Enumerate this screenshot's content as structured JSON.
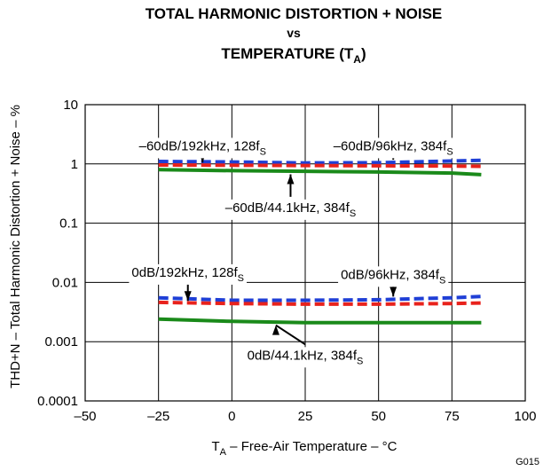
{
  "chart_data": {
    "type": "line",
    "title_lines": [
      "TOTAL HARMONIC DISTORTION + NOISE",
      "vs",
      "TEMPERATURE (T",
      "A",
      ")"
    ],
    "xlabel_parts": [
      "T",
      "A",
      " – Free-Air Temperature – °C"
    ],
    "ylabel": "THD+N – Total Harmonic Distortion + Noise – %",
    "figure_id": "G015",
    "xlim": [
      -50,
      100
    ],
    "ylim": [
      0.0001,
      10
    ],
    "y_scale": "log",
    "grid": true,
    "x_ticks": [
      "–50",
      "–25",
      "0",
      "25",
      "50",
      "75",
      "100"
    ],
    "y_ticks": [
      "0.0001",
      "0.001",
      "0.01",
      "0.1",
      "1",
      "10"
    ],
    "series": [
      {
        "name": "–60dB/96kHz, 384fS",
        "label_main": "–60dB/96kHz, 384f",
        "label_sub": "S",
        "color": "#1f3fd6",
        "style": "dashed",
        "x": [
          -25,
          0,
          25,
          50,
          75,
          85
        ],
        "y": [
          1.1,
          1.08,
          1.04,
          1.05,
          1.12,
          1.15
        ]
      },
      {
        "name": "–60dB/192kHz, 128fS",
        "label_main": "–60dB/192kHz, 128f",
        "label_sub": "S",
        "color": "#e8221c",
        "style": "dashed",
        "x": [
          -25,
          0,
          25,
          50,
          75,
          85
        ],
        "y": [
          0.96,
          0.95,
          0.94,
          0.93,
          0.92,
          0.91
        ]
      },
      {
        "name": "–60dB/44.1kHz, 384fS",
        "label_main": "–60dB/44.1kHz, 384f",
        "label_sub": "S",
        "color": "#1a8a1a",
        "style": "solid",
        "x": [
          -25,
          0,
          25,
          50,
          75,
          85
        ],
        "y": [
          0.8,
          0.77,
          0.75,
          0.73,
          0.7,
          0.66
        ]
      },
      {
        "name": "0dB/96kHz, 384fS",
        "label_main": "0dB/96kHz, 384f",
        "label_sub": "S",
        "color": "#1f3fd6",
        "style": "dashed",
        "x": [
          -25,
          0,
          25,
          50,
          75,
          85
        ],
        "y": [
          0.0055,
          0.005,
          0.005,
          0.0051,
          0.0055,
          0.0058
        ]
      },
      {
        "name": "0dB/192kHz, 128fS",
        "label_main": "0dB/192kHz, 128f",
        "label_sub": "S",
        "color": "#e8221c",
        "style": "dashed",
        "x": [
          -25,
          0,
          25,
          50,
          75,
          85
        ],
        "y": [
          0.0046,
          0.0044,
          0.0043,
          0.0043,
          0.0044,
          0.0045
        ]
      },
      {
        "name": "0dB/44.1kHz, 384fS",
        "label_main": "0dB/44.1kHz, 384f",
        "label_sub": "S",
        "color": "#1a8a1a",
        "style": "solid",
        "x": [
          -25,
          0,
          25,
          50,
          75,
          85
        ],
        "y": [
          0.0024,
          0.0022,
          0.0021,
          0.0021,
          0.0021,
          0.0021
        ]
      }
    ],
    "annotations": [
      {
        "series": 1,
        "text_x": -10,
        "text_y": 1.7,
        "arrow_x": -10,
        "arrow_y": 0.95,
        "anchor": "middle"
      },
      {
        "series": 0,
        "text_x": 55,
        "text_y": 1.7,
        "arrow_x": 55,
        "arrow_y": 1.06,
        "anchor": "middle"
      },
      {
        "series": 2,
        "text_x": 20,
        "text_y": 0.155,
        "arrow_x": 20,
        "arrow_y": 0.74,
        "anchor": "middle"
      },
      {
        "series": 4,
        "text_x": -15,
        "text_y": 0.0125,
        "arrow_x": -15,
        "arrow_y": 0.0044,
        "anchor": "middle"
      },
      {
        "series": 3,
        "text_x": 55,
        "text_y": 0.0115,
        "arrow_x": 55,
        "arrow_y": 0.0052,
        "anchor": "middle"
      },
      {
        "series": 5,
        "text_x": 25,
        "text_y": 0.0005,
        "arrow_x": 15,
        "arrow_y": 0.0021,
        "anchor": "middle"
      }
    ]
  }
}
